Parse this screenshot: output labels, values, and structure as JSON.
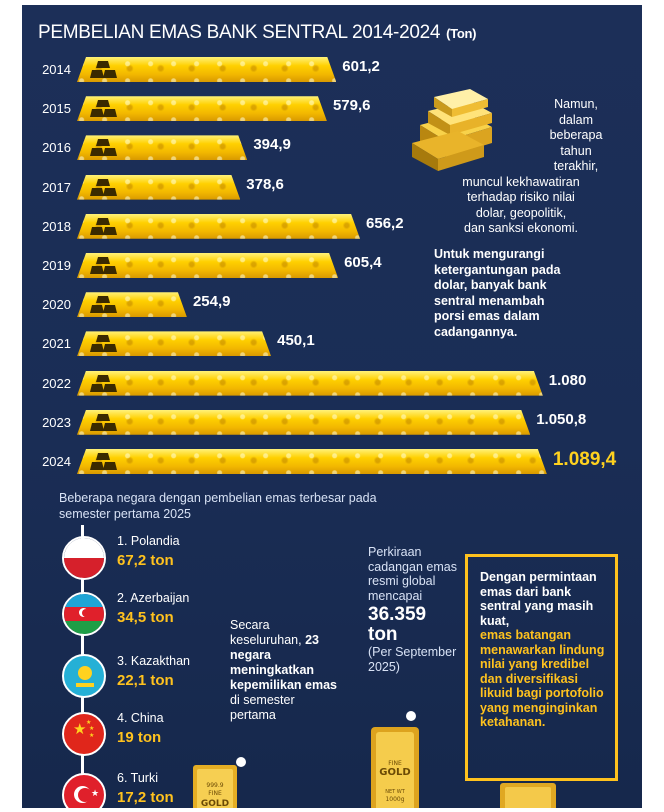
{
  "title": "PEMBELIAN EMAS BANK SENTRAL 2014-2024",
  "title_unit": "(Ton)",
  "chart_data": {
    "type": "bar",
    "orientation": "horizontal",
    "title": "PEMBELIAN EMAS BANK SENTRAL 2014-2024",
    "unit": "(Ton)",
    "categories": [
      "2014",
      "2015",
      "2016",
      "2017",
      "2018",
      "2019",
      "2020",
      "2021",
      "2022",
      "2023",
      "2024"
    ],
    "values": [
      601.2,
      579.6,
      394.9,
      378.6,
      656.2,
      605.4,
      254.9,
      450.1,
      1080,
      1050.8,
      1089.4
    ],
    "value_labels": [
      "601,2",
      "579,6",
      "394,9",
      "378,6",
      "656,2",
      "605,4",
      "254,9",
      "450,1",
      "1.080",
      "1.050,8",
      "1.089,4"
    ],
    "grid": false,
    "legend": "none",
    "bar_color": "#ffd000"
  },
  "side_note": {
    "plain": "Namun, dalam beberapa tahun terakhir, muncul kekhawatiran terhadap risiko nilai dolar, geopolitik, dan sanksi ekonomi.",
    "plain_lines": [
      "Namun,",
      "dalam",
      "beberapa",
      "tahun",
      "terakhir,",
      "muncul kekhawatiran",
      "terhadap risiko nilai",
      "dolar, geopolitik,",
      "dan sanksi ekonomi."
    ],
    "bold_lines": [
      "Untuk mengurangi",
      "ketergantungan pada",
      "dolar, banyak bank",
      "sentral menambah",
      "porsi emas dalam",
      "cadangannya."
    ]
  },
  "countries_intro": "Beberapa negara dengan pembelian emas terbesar pada semester pertama 2025",
  "countries": [
    {
      "label": "1. Polandia",
      "value": "67,2 ton"
    },
    {
      "label": "2. Azerbaijan",
      "value": "34,5 ton"
    },
    {
      "label": "3. Kazakthan",
      "value": "22,1 ton"
    },
    {
      "label": "4. China",
      "value": "19 ton"
    },
    {
      "label": "6. Turki",
      "value": "17,2 ton"
    }
  ],
  "summary": {
    "line1": "Secara keseluruhan,",
    "bold": "23 negara meningkatkan kepemilikan emas",
    "line2": "di semester pertama"
  },
  "estimate": {
    "label": "Perkiraan cadangan emas resmi global mencapai",
    "value": "36.359 ton",
    "note": "(Per September 2025)"
  },
  "callout": {
    "white": "Dengan permintaan emas dari bank sentral yang masih kuat,",
    "yellow": "emas batangan menawarkan lindung nilai yang kredibel dan diversifikasi likuid bagi portofolio yang menginginkan ketahanan."
  },
  "gold_bar_marks": {
    "left": [
      "999.9",
      "FINE",
      "GOLD"
    ],
    "middle": [
      "FINE",
      "GOLD",
      "NET WT",
      "1000g"
    ]
  },
  "colors": {
    "background": "#1b2e57",
    "accent": "#ffc21e"
  }
}
